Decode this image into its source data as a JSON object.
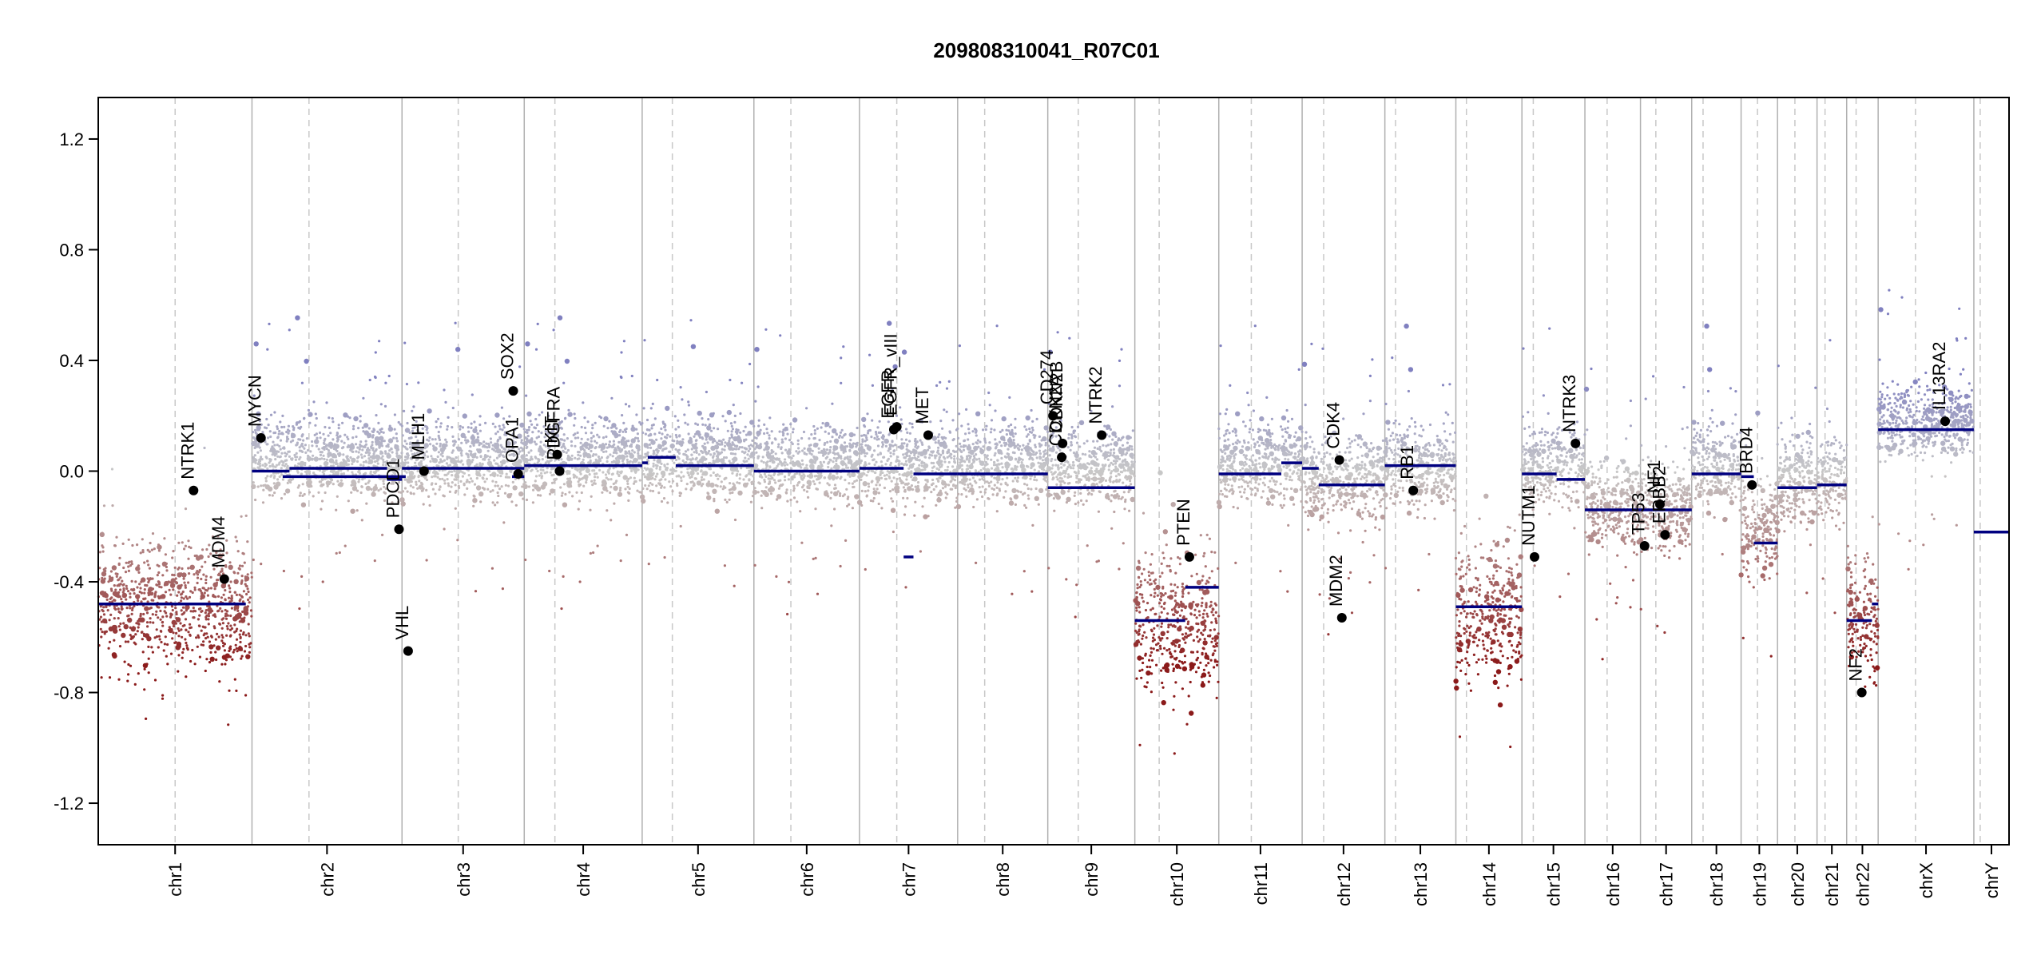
{
  "chart_data": {
    "type": "scatter",
    "title": "209808310041_R07C01",
    "xlabel": "",
    "ylabel": "",
    "ylim": [
      -1.35,
      1.35
    ],
    "y_ticks": [
      "1.2",
      "0.8",
      "0.4",
      "0.0",
      "-0.4",
      "-0.8",
      "-1.2"
    ],
    "y_tick_values": [
      1.2,
      0.8,
      0.4,
      0.0,
      -0.4,
      -0.8,
      -1.2
    ],
    "grid": "vertical chromosome boundaries and dashed centromeres",
    "colors": {
      "segment": "#000080",
      "gain": "#8080c0",
      "neutral": "#c8c8c8",
      "loss": "#8b1a1a",
      "boundary": "#b0b0b0",
      "centromere": "#c8c8c8",
      "marker": "#000000"
    },
    "chromosomes": [
      {
        "name": "chr1",
        "length": 249,
        "centromere": 0.5,
        "base": -0.48,
        "spread": 0.28
      },
      {
        "name": "chr2",
        "length": 243,
        "centromere": 0.38,
        "base": 0.05,
        "spread": 0.18
      },
      {
        "name": "chr3",
        "length": 198,
        "centromere": 0.46,
        "base": 0.04,
        "spread": 0.18
      },
      {
        "name": "chr4",
        "length": 191,
        "centromere": 0.26,
        "base": 0.05,
        "spread": 0.18
      },
      {
        "name": "chr5",
        "length": 181,
        "centromere": 0.27,
        "base": 0.05,
        "spread": 0.18
      },
      {
        "name": "chr6",
        "length": 171,
        "centromere": 0.35,
        "base": 0.03,
        "spread": 0.18
      },
      {
        "name": "chr7",
        "length": 159,
        "centromere": 0.38,
        "base": 0.03,
        "spread": 0.18
      },
      {
        "name": "chr8",
        "length": 146,
        "centromere": 0.3,
        "base": 0.03,
        "spread": 0.18
      },
      {
        "name": "chr9",
        "length": 141,
        "centromere": 0.35,
        "base": 0.02,
        "spread": 0.18
      },
      {
        "name": "chr10",
        "length": 136,
        "centromere": 0.29,
        "base": -0.55,
        "spread": 0.3
      },
      {
        "name": "chr11",
        "length": 135,
        "centromere": 0.39,
        "base": 0.03,
        "spread": 0.18
      },
      {
        "name": "chr12",
        "length": 134,
        "centromere": 0.26,
        "base": -0.03,
        "spread": 0.2
      },
      {
        "name": "chr13",
        "length": 115,
        "centromere": 0.15,
        "base": 0.02,
        "spread": 0.18
      },
      {
        "name": "chr14",
        "length": 107,
        "centromere": 0.16,
        "base": -0.52,
        "spread": 0.3
      },
      {
        "name": "chr15",
        "length": 102,
        "centromere": 0.18,
        "base": 0.02,
        "spread": 0.18
      },
      {
        "name": "chr16",
        "length": 90,
        "centromere": 0.4,
        "base": -0.12,
        "spread": 0.2
      },
      {
        "name": "chr17",
        "length": 83,
        "centromere": 0.3,
        "base": -0.13,
        "spread": 0.2
      },
      {
        "name": "chr18",
        "length": 80,
        "centromere": 0.23,
        "base": 0.02,
        "spread": 0.18
      },
      {
        "name": "chr19",
        "length": 59,
        "centromere": 0.45,
        "base": -0.2,
        "spread": 0.22
      },
      {
        "name": "chr20",
        "length": 64,
        "centromere": 0.44,
        "base": -0.04,
        "spread": 0.2
      },
      {
        "name": "chr21",
        "length": 48,
        "centromere": 0.27,
        "base": -0.03,
        "spread": 0.2
      },
      {
        "name": "chr22",
        "length": 51,
        "centromere": 0.3,
        "base": -0.52,
        "spread": 0.28
      },
      {
        "name": "chrX",
        "length": 155,
        "centromere": 0.39,
        "base": 0.18,
        "spread": 0.16
      },
      {
        "name": "chrY",
        "length": 57,
        "centromere": 0.18,
        "base": -0.22,
        "spread": 0.0
      }
    ],
    "segments": [
      {
        "chr": "chr1",
        "start": 0.0,
        "end": 0.96,
        "value": -0.48
      },
      {
        "chr": "chr1",
        "start": 1.2,
        "end": 2.0,
        "value": -0.02
      },
      {
        "chr": "chr2",
        "start": 0.0,
        "end": 0.25,
        "value": 0.0
      },
      {
        "chr": "chr2",
        "start": 0.25,
        "end": 0.9,
        "value": 0.01
      },
      {
        "chr": "chr2",
        "start": 0.9,
        "end": 1.0,
        "value": -0.03
      },
      {
        "chr": "chr3",
        "start": 0.0,
        "end": 1.0,
        "value": 0.01
      },
      {
        "chr": "chr3",
        "start": 0.9,
        "end": 1.0,
        "value": -0.02
      },
      {
        "chr": "chr4",
        "start": 0.0,
        "end": 1.0,
        "value": 0.02
      },
      {
        "chr": "chr5",
        "start": 0.0,
        "end": 0.05,
        "value": 0.03
      },
      {
        "chr": "chr5",
        "start": 0.05,
        "end": 0.3,
        "value": 0.05
      },
      {
        "chr": "chr5",
        "start": 0.3,
        "end": 1.0,
        "value": 0.02
      },
      {
        "chr": "chr6",
        "start": 0.0,
        "end": 1.0,
        "value": 0.0
      },
      {
        "chr": "chr7",
        "start": 0.0,
        "end": 0.45,
        "value": 0.01
      },
      {
        "chr": "chr7",
        "start": 0.45,
        "end": 0.55,
        "value": -0.31
      },
      {
        "chr": "chr7",
        "start": 0.55,
        "end": 1.0,
        "value": -0.01
      },
      {
        "chr": "chr8",
        "start": 0.0,
        "end": 1.0,
        "value": -0.01
      },
      {
        "chr": "chr9",
        "start": 0.0,
        "end": 1.0,
        "value": -0.06
      },
      {
        "chr": "chr10",
        "start": 0.0,
        "end": 0.6,
        "value": -0.54
      },
      {
        "chr": "chr10",
        "start": 0.6,
        "end": 1.0,
        "value": -0.42
      },
      {
        "chr": "chr11",
        "start": 0.0,
        "end": 0.75,
        "value": -0.01
      },
      {
        "chr": "chr11",
        "start": 0.75,
        "end": 1.0,
        "value": 0.03
      },
      {
        "chr": "chr12",
        "start": 0.0,
        "end": 0.2,
        "value": 0.01
      },
      {
        "chr": "chr12",
        "start": 0.2,
        "end": 1.0,
        "value": -0.05
      },
      {
        "chr": "chr13",
        "start": 0.0,
        "end": 1.0,
        "value": 0.02
      },
      {
        "chr": "chr14",
        "start": 0.0,
        "end": 1.0,
        "value": -0.49
      },
      {
        "chr": "chr15",
        "start": 0.0,
        "end": 0.55,
        "value": -0.01
      },
      {
        "chr": "chr15",
        "start": 0.55,
        "end": 1.0,
        "value": -0.03
      },
      {
        "chr": "chr16",
        "start": 0.0,
        "end": 1.0,
        "value": -0.14
      },
      {
        "chr": "chr17",
        "start": 0.0,
        "end": 1.0,
        "value": -0.14
      },
      {
        "chr": "chr18",
        "start": 0.0,
        "end": 1.0,
        "value": -0.01
      },
      {
        "chr": "chr19",
        "start": 0.0,
        "end": 0.35,
        "value": -0.02
      },
      {
        "chr": "chr19",
        "start": 0.35,
        "end": 1.0,
        "value": -0.26
      },
      {
        "chr": "chr20",
        "start": 0.0,
        "end": 1.0,
        "value": -0.06
      },
      {
        "chr": "chr21",
        "start": 0.0,
        "end": 1.0,
        "value": -0.05
      },
      {
        "chr": "chr22",
        "start": 0.0,
        "end": 0.8,
        "value": -0.54
      },
      {
        "chr": "chr22",
        "start": 0.8,
        "end": 1.0,
        "value": -0.48
      },
      {
        "chr": "chrX",
        "start": 0.0,
        "end": 1.0,
        "value": 0.15
      },
      {
        "chr": "chrY",
        "start": 0.0,
        "end": 1.0,
        "value": -0.22
      }
    ],
    "genes": [
      {
        "name": "NTRK1",
        "chr": "chr1",
        "pos": 0.62,
        "value": -0.07
      },
      {
        "name": "MDM4",
        "chr": "chr1",
        "pos": 0.82,
        "value": -0.39
      },
      {
        "name": "MYCN",
        "chr": "chr2",
        "pos": 0.06,
        "value": 0.12
      },
      {
        "name": "VHL",
        "chr": "chr3",
        "pos": 0.05,
        "value": -0.65
      },
      {
        "name": "PDCD1",
        "chr": "chr2",
        "pos": 0.98,
        "value": -0.21
      },
      {
        "name": "MLH1",
        "chr": "chr3",
        "pos": 0.18,
        "value": 0.0
      },
      {
        "name": "SOX2",
        "chr": "chr3",
        "pos": 0.91,
        "value": 0.29
      },
      {
        "name": "OPA1",
        "chr": "chr3",
        "pos": 0.95,
        "value": -0.01
      },
      {
        "name": "KIT",
        "chr": "chr4",
        "pos": 0.28,
        "value": 0.06
      },
      {
        "name": "PDGFRA",
        "chr": "chr4",
        "pos": 0.3,
        "value": 0.0
      },
      {
        "name": "EGFR",
        "chr": "chr7",
        "pos": 0.35,
        "value": 0.15
      },
      {
        "name": "EGFR_vIII",
        "chr": "chr7",
        "pos": 0.38,
        "value": 0.16
      },
      {
        "name": "MET",
        "chr": "chr7",
        "pos": 0.7,
        "value": 0.13
      },
      {
        "name": "CD274",
        "chr": "chr9",
        "pos": 0.06,
        "value": 0.2
      },
      {
        "name": "CDKN2A",
        "chr": "chr9",
        "pos": 0.16,
        "value": 0.05
      },
      {
        "name": "CDKN2B",
        "chr": "chr9",
        "pos": 0.17,
        "value": 0.1
      },
      {
        "name": "NTRK2",
        "chr": "chr9",
        "pos": 0.62,
        "value": 0.13
      },
      {
        "name": "PTEN",
        "chr": "chr10",
        "pos": 0.65,
        "value": -0.31
      },
      {
        "name": "CDK4",
        "chr": "chr12",
        "pos": 0.45,
        "value": 0.04
      },
      {
        "name": "MDM2",
        "chr": "chr12",
        "pos": 0.48,
        "value": -0.53
      },
      {
        "name": "RB1",
        "chr": "chr13",
        "pos": 0.4,
        "value": -0.07
      },
      {
        "name": "NUTM1",
        "chr": "chr15",
        "pos": 0.2,
        "value": -0.31
      },
      {
        "name": "NTRK3",
        "chr": "chr15",
        "pos": 0.85,
        "value": 0.1
      },
      {
        "name": "TP53",
        "chr": "chr17",
        "pos": 0.08,
        "value": -0.27
      },
      {
        "name": "NF1",
        "chr": "chr17",
        "pos": 0.38,
        "value": -0.12
      },
      {
        "name": "ERBB2",
        "chr": "chr17",
        "pos": 0.48,
        "value": -0.23
      },
      {
        "name": "BRD4",
        "chr": "chr19",
        "pos": 0.3,
        "value": -0.05
      },
      {
        "name": "NF2",
        "chr": "chr22",
        "pos": 0.48,
        "value": -0.8
      },
      {
        "name": "IL13RA2",
        "chr": "chrX",
        "pos": 0.7,
        "value": 0.18
      }
    ]
  }
}
